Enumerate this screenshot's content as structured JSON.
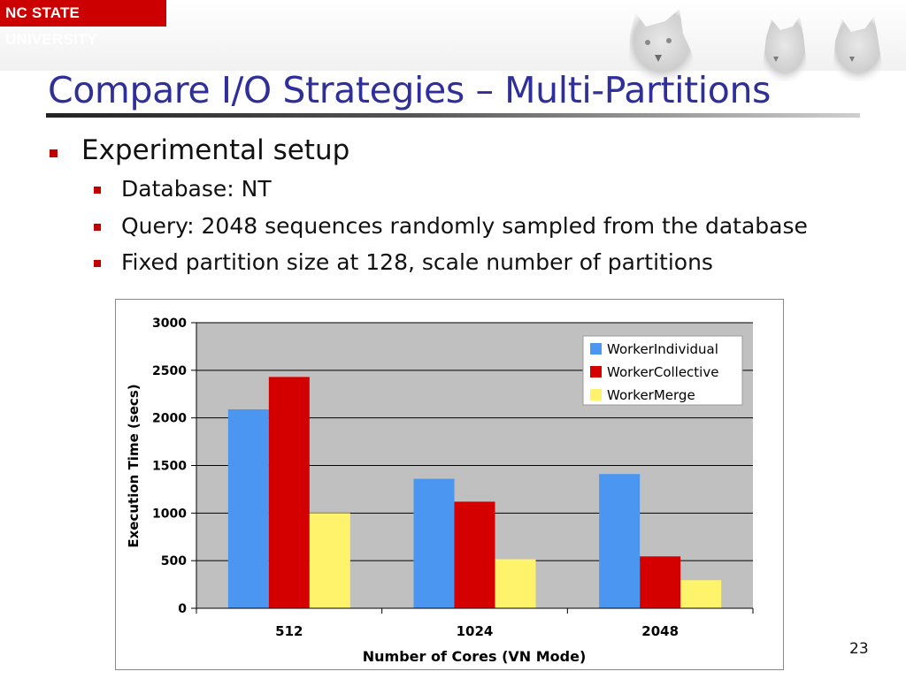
{
  "header": {
    "logo_text": "NC STATE UNIVERSITY"
  },
  "slide": {
    "title": "Compare I/O Strategies – Multi-Partitions",
    "bullets": {
      "main": "Experimental setup",
      "sub": [
        "Database: NT",
        "Query: 2048 sequences randomly sampled from the database",
        "Fixed partition size at 128, scale number of partitions"
      ]
    },
    "slide_number": "23"
  },
  "colors": {
    "title": "#2f2f9a",
    "bullet": "#c00000",
    "series": [
      "#4a96f0",
      "#d40000",
      "#fff36b"
    ],
    "plot_bg": "#c0c0c0"
  },
  "chart_data": {
    "type": "bar",
    "title": "",
    "xlabel": "Number of Cores (VN Mode)",
    "ylabel": "Execution Time (secs)",
    "categories": [
      "512",
      "1024",
      "2048"
    ],
    "series": [
      {
        "name": "WorkerIndividual",
        "values": [
          2090,
          1360,
          1410
        ]
      },
      {
        "name": "WorkerCollective",
        "values": [
          2430,
          1120,
          545
        ]
      },
      {
        "name": "WorkerMerge",
        "values": [
          1000,
          515,
          295
        ]
      }
    ],
    "ylim": [
      0,
      3000
    ],
    "yticks": [
      0,
      500,
      1000,
      1500,
      2000,
      2500,
      3000
    ],
    "grid": true,
    "legend": "top-right"
  }
}
